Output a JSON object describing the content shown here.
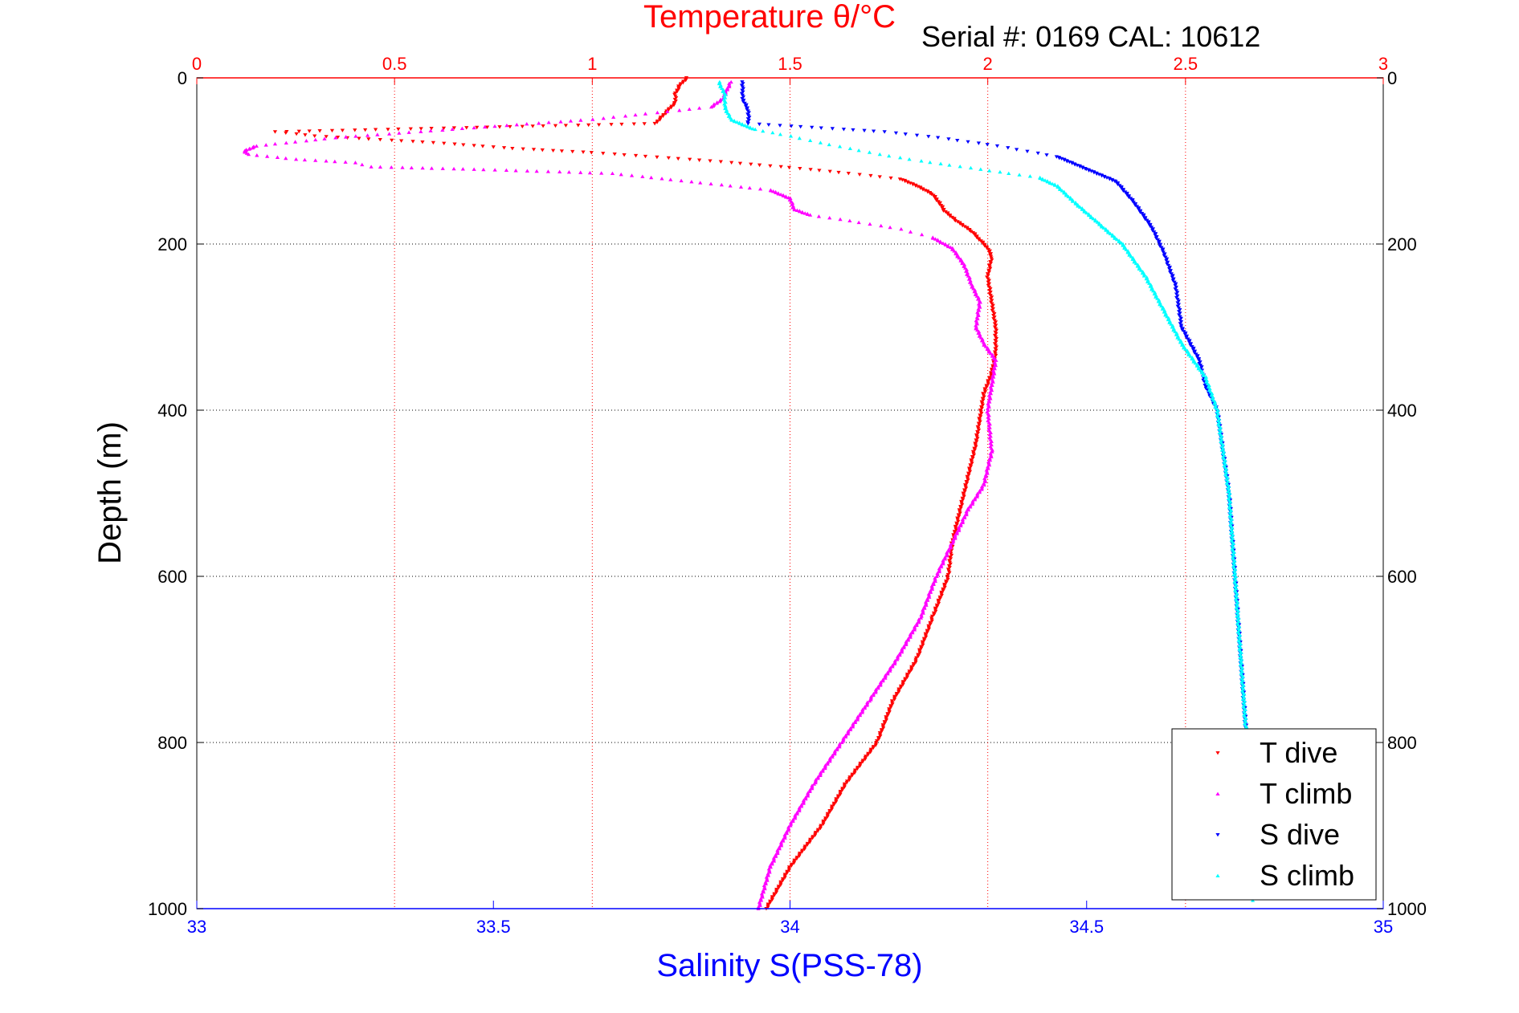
{
  "chart_data": {
    "type": "scatter",
    "title": "Temperature θ/°C",
    "subtitle": "Serial #: 0169 CAL: 10612",
    "ylabel": "Depth (m)",
    "xlabel_bottom": "Salinity S(PSS-78)",
    "xlabel_top": "Temperature θ/°C",
    "y_reversed": true,
    "ylim": [
      0,
      1000
    ],
    "xlim_bottom": [
      33,
      35
    ],
    "xlim_top": [
      0,
      3
    ],
    "yticks": [
      "0",
      "200",
      "400",
      "600",
      "800",
      "1000"
    ],
    "xticks_bottom": [
      "33",
      "33.5",
      "34",
      "34.5",
      "35"
    ],
    "xticks_top": [
      "0",
      "0.5",
      "1",
      "1.5",
      "2",
      "2.5",
      "3"
    ],
    "grid": true,
    "legend_position": "bottom-right",
    "colors": {
      "axis_top": "#ff0000",
      "axis_bottom": "#0000ff",
      "axis_y": "#000000"
    },
    "series": [
      {
        "name": "T dive",
        "axis": "top",
        "color": "#ff0000",
        "marker": "triangle-down",
        "points": [
          [
            1.24,
            0
          ],
          [
            1.22,
            10
          ],
          [
            1.21,
            20
          ],
          [
            1.21,
            30
          ],
          [
            1.19,
            40
          ],
          [
            1.16,
            55
          ],
          [
            0.2,
            65
          ],
          [
            0.3,
            70
          ],
          [
            0.6,
            78
          ],
          [
            0.8,
            85
          ],
          [
            1.0,
            90
          ],
          [
            1.3,
            100
          ],
          [
            1.5,
            108
          ],
          [
            1.65,
            115
          ],
          [
            1.78,
            122
          ],
          [
            1.82,
            130
          ],
          [
            1.86,
            140
          ],
          [
            1.88,
            152
          ],
          [
            1.89,
            160
          ],
          [
            1.92,
            172
          ],
          [
            1.96,
            185
          ],
          [
            1.98,
            195
          ],
          [
            2.0,
            205
          ],
          [
            2.01,
            215
          ],
          [
            2.0,
            240
          ],
          [
            2.01,
            270
          ],
          [
            2.02,
            300
          ],
          [
            2.02,
            330
          ],
          [
            2.01,
            355
          ],
          [
            1.99,
            380
          ],
          [
            1.98,
            410
          ],
          [
            1.97,
            440
          ],
          [
            1.95,
            480
          ],
          [
            1.93,
            520
          ],
          [
            1.91,
            560
          ],
          [
            1.9,
            600
          ],
          [
            1.86,
            650
          ],
          [
            1.82,
            700
          ],
          [
            1.76,
            750
          ],
          [
            1.72,
            800
          ],
          [
            1.64,
            850
          ],
          [
            1.58,
            900
          ],
          [
            1.5,
            950
          ],
          [
            1.44,
            1000
          ]
        ]
      },
      {
        "name": "T climb",
        "axis": "top",
        "color": "#ff00ff",
        "marker": "triangle-up",
        "points": [
          [
            1.35,
            5
          ],
          [
            1.33,
            25
          ],
          [
            1.3,
            35
          ],
          [
            1.0,
            50
          ],
          [
            0.7,
            60
          ],
          [
            0.35,
            72
          ],
          [
            0.15,
            82
          ],
          [
            0.12,
            88
          ],
          [
            0.13,
            92
          ],
          [
            0.25,
            98
          ],
          [
            0.4,
            102
          ],
          [
            0.44,
            107
          ],
          [
            0.7,
            110
          ],
          [
            1.05,
            115
          ],
          [
            1.25,
            125
          ],
          [
            1.45,
            135
          ],
          [
            1.5,
            145
          ],
          [
            1.51,
            158
          ],
          [
            1.55,
            165
          ],
          [
            1.65,
            172
          ],
          [
            1.78,
            182
          ],
          [
            1.86,
            192
          ],
          [
            1.91,
            205
          ],
          [
            1.94,
            225
          ],
          [
            1.96,
            250
          ],
          [
            1.98,
            270
          ],
          [
            1.97,
            300
          ],
          [
            1.99,
            320
          ],
          [
            2.02,
            340
          ],
          [
            2.01,
            370
          ],
          [
            2.0,
            400
          ],
          [
            2.01,
            450
          ],
          [
            1.99,
            490
          ],
          [
            1.95,
            520
          ],
          [
            1.91,
            560
          ],
          [
            1.87,
            600
          ],
          [
            1.83,
            650
          ],
          [
            1.77,
            700
          ],
          [
            1.7,
            750
          ],
          [
            1.63,
            800
          ],
          [
            1.56,
            850
          ],
          [
            1.5,
            900
          ],
          [
            1.45,
            950
          ],
          [
            1.42,
            1000
          ]
        ]
      },
      {
        "name": "S dive",
        "axis": "bottom",
        "color": "#0000ff",
        "marker": "triangle-down",
        "points": [
          [
            33.92,
            5
          ],
          [
            33.92,
            25
          ],
          [
            33.93,
            40
          ],
          [
            33.93,
            55
          ],
          [
            34.16,
            65
          ],
          [
            34.25,
            72
          ],
          [
            34.35,
            82
          ],
          [
            34.45,
            95
          ],
          [
            34.5,
            110
          ],
          [
            34.55,
            125
          ],
          [
            34.58,
            150
          ],
          [
            34.61,
            180
          ],
          [
            34.63,
            210
          ],
          [
            34.65,
            250
          ],
          [
            34.66,
            300
          ],
          [
            34.69,
            340
          ],
          [
            34.7,
            370
          ],
          [
            34.72,
            400
          ],
          [
            34.73,
            450
          ],
          [
            34.74,
            500
          ],
          [
            34.745,
            550
          ],
          [
            34.75,
            600
          ],
          [
            34.755,
            650
          ],
          [
            34.76,
            700
          ],
          [
            34.765,
            750
          ],
          [
            34.77,
            800
          ],
          [
            34.775,
            850
          ],
          [
            34.775,
            900
          ],
          [
            34.78,
            950
          ],
          [
            34.78,
            990
          ]
        ]
      },
      {
        "name": "S climb",
        "axis": "bottom",
        "color": "#00ffff",
        "marker": "triangle-up",
        "points": [
          [
            33.88,
            5
          ],
          [
            33.89,
            20
          ],
          [
            33.89,
            35
          ],
          [
            33.9,
            50
          ],
          [
            33.94,
            62
          ],
          [
            34.0,
            70
          ],
          [
            34.05,
            78
          ],
          [
            34.1,
            85
          ],
          [
            34.15,
            92
          ],
          [
            34.22,
            100
          ],
          [
            34.32,
            110
          ],
          [
            34.42,
            120
          ],
          [
            34.45,
            130
          ],
          [
            34.48,
            150
          ],
          [
            34.52,
            175
          ],
          [
            34.56,
            200
          ],
          [
            34.6,
            240
          ],
          [
            34.63,
            280
          ],
          [
            34.66,
            320
          ],
          [
            34.7,
            360
          ],
          [
            34.72,
            400
          ],
          [
            34.73,
            450
          ],
          [
            34.74,
            500
          ],
          [
            34.745,
            550
          ],
          [
            34.75,
            600
          ],
          [
            34.755,
            650
          ],
          [
            34.76,
            700
          ],
          [
            34.765,
            750
          ],
          [
            34.77,
            800
          ],
          [
            34.775,
            850
          ],
          [
            34.775,
            900
          ],
          [
            34.78,
            950
          ],
          [
            34.78,
            990
          ]
        ]
      }
    ]
  }
}
